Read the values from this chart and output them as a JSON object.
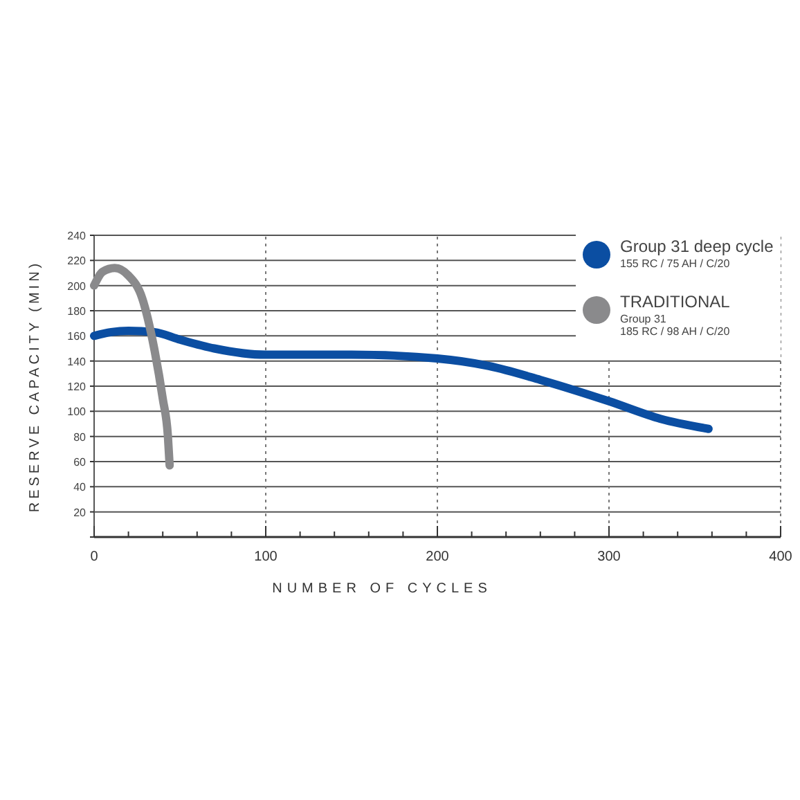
{
  "chart_data": {
    "type": "line",
    "xlabel": "NUMBER OF CYCLES",
    "ylabel": "RESERVE CAPACITY (MIN)",
    "xlim": [
      0,
      400
    ],
    "ylim": [
      0,
      240
    ],
    "xticks": [
      0,
      {
        "value": 20,
        "label": null
      },
      {
        "value": 40,
        "label": null
      },
      {
        "value": 60,
        "label": null
      },
      {
        "value": 80,
        "label": null
      },
      100,
      {
        "value": 120,
        "label": null
      },
      {
        "value": 140,
        "label": null
      },
      {
        "value": 160,
        "label": null
      },
      {
        "value": 180,
        "label": null
      },
      200,
      {
        "value": 220,
        "label": null
      },
      {
        "value": 240,
        "label": null
      },
      {
        "value": 260,
        "label": null
      },
      {
        "value": 280,
        "label": null
      },
      300,
      {
        "value": 320,
        "label": null
      },
      {
        "value": 340,
        "label": null
      },
      {
        "value": 360,
        "label": null
      },
      {
        "value": 380,
        "label": null
      },
      400
    ],
    "yticks": [
      {
        "value": 0,
        "label": null
      },
      20,
      40,
      60,
      80,
      100,
      120,
      140,
      160,
      180,
      200,
      220,
      240
    ],
    "grid": true,
    "legend": "top right",
    "marker": "none",
    "line_style": "solid",
    "series": [
      {
        "name": "Group 31 deep cycle\n155 RC / 75 AH / C/20",
        "color": "#0b4ea2",
        "x": [
          0,
          10,
          20,
          35,
          50,
          70,
          100,
          150,
          200,
          230,
          260,
          300,
          330,
          358
        ],
        "values": [
          160,
          163,
          164,
          163,
          157,
          150,
          145,
          145,
          142,
          136,
          125,
          108,
          94,
          86
        ]
      },
      {
        "name": "TRADITIONAL\nGroup 31\n185 RC / 98 AH / C/20",
        "color": "#8a8a8c",
        "x": [
          0,
          5,
          12,
          20,
          28,
          35,
          40,
          43,
          44
        ],
        "values": [
          200,
          211,
          214,
          208,
          190,
          150,
          110,
          80,
          57
        ]
      }
    ]
  }
}
